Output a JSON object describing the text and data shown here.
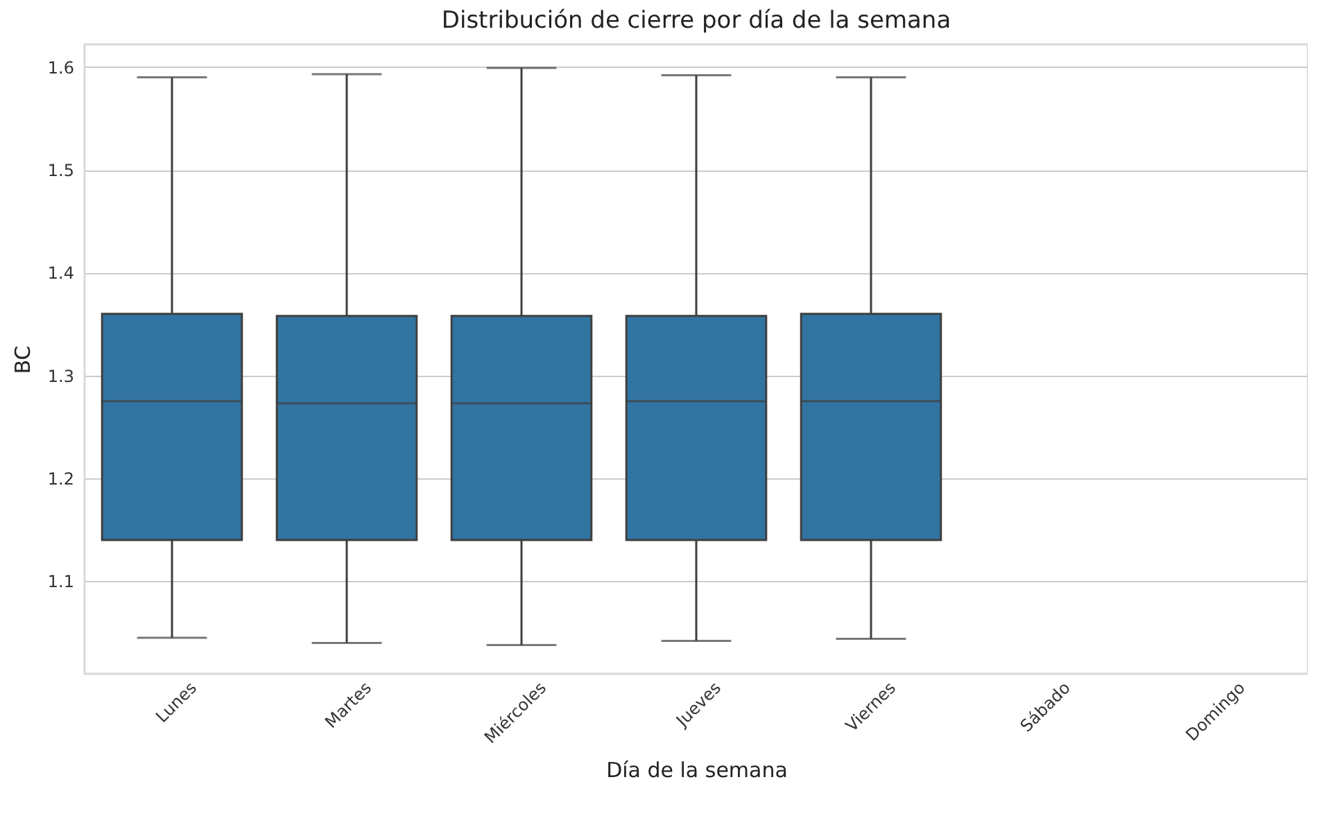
{
  "chart_data": {
    "type": "box",
    "title": "Distribución de cierre por día de la semana",
    "xlabel": "Día de la semana",
    "ylabel": "BC",
    "categories": [
      "Lunes",
      "Martes",
      "Miércoles",
      "Jueves",
      "Viernes",
      "Sábado",
      "Domingo"
    ],
    "color": "#3274a1",
    "boxes": [
      {
        "low": 1.045,
        "q1": 1.14,
        "median": 1.275,
        "q3": 1.36,
        "high": 1.59
      },
      {
        "low": 1.04,
        "q1": 1.14,
        "median": 1.273,
        "q3": 1.358,
        "high": 1.593
      },
      {
        "low": 1.038,
        "q1": 1.14,
        "median": 1.273,
        "q3": 1.358,
        "high": 1.599
      },
      {
        "low": 1.042,
        "q1": 1.14,
        "median": 1.275,
        "q3": 1.358,
        "high": 1.592
      },
      {
        "low": 1.044,
        "q1": 1.14,
        "median": 1.275,
        "q3": 1.36,
        "high": 1.59
      },
      null,
      null
    ],
    "ylim": [
      1.01,
      1.622
    ],
    "yticks": [
      1.1,
      1.2,
      1.3,
      1.4,
      1.5,
      1.6
    ],
    "grid": "y"
  }
}
